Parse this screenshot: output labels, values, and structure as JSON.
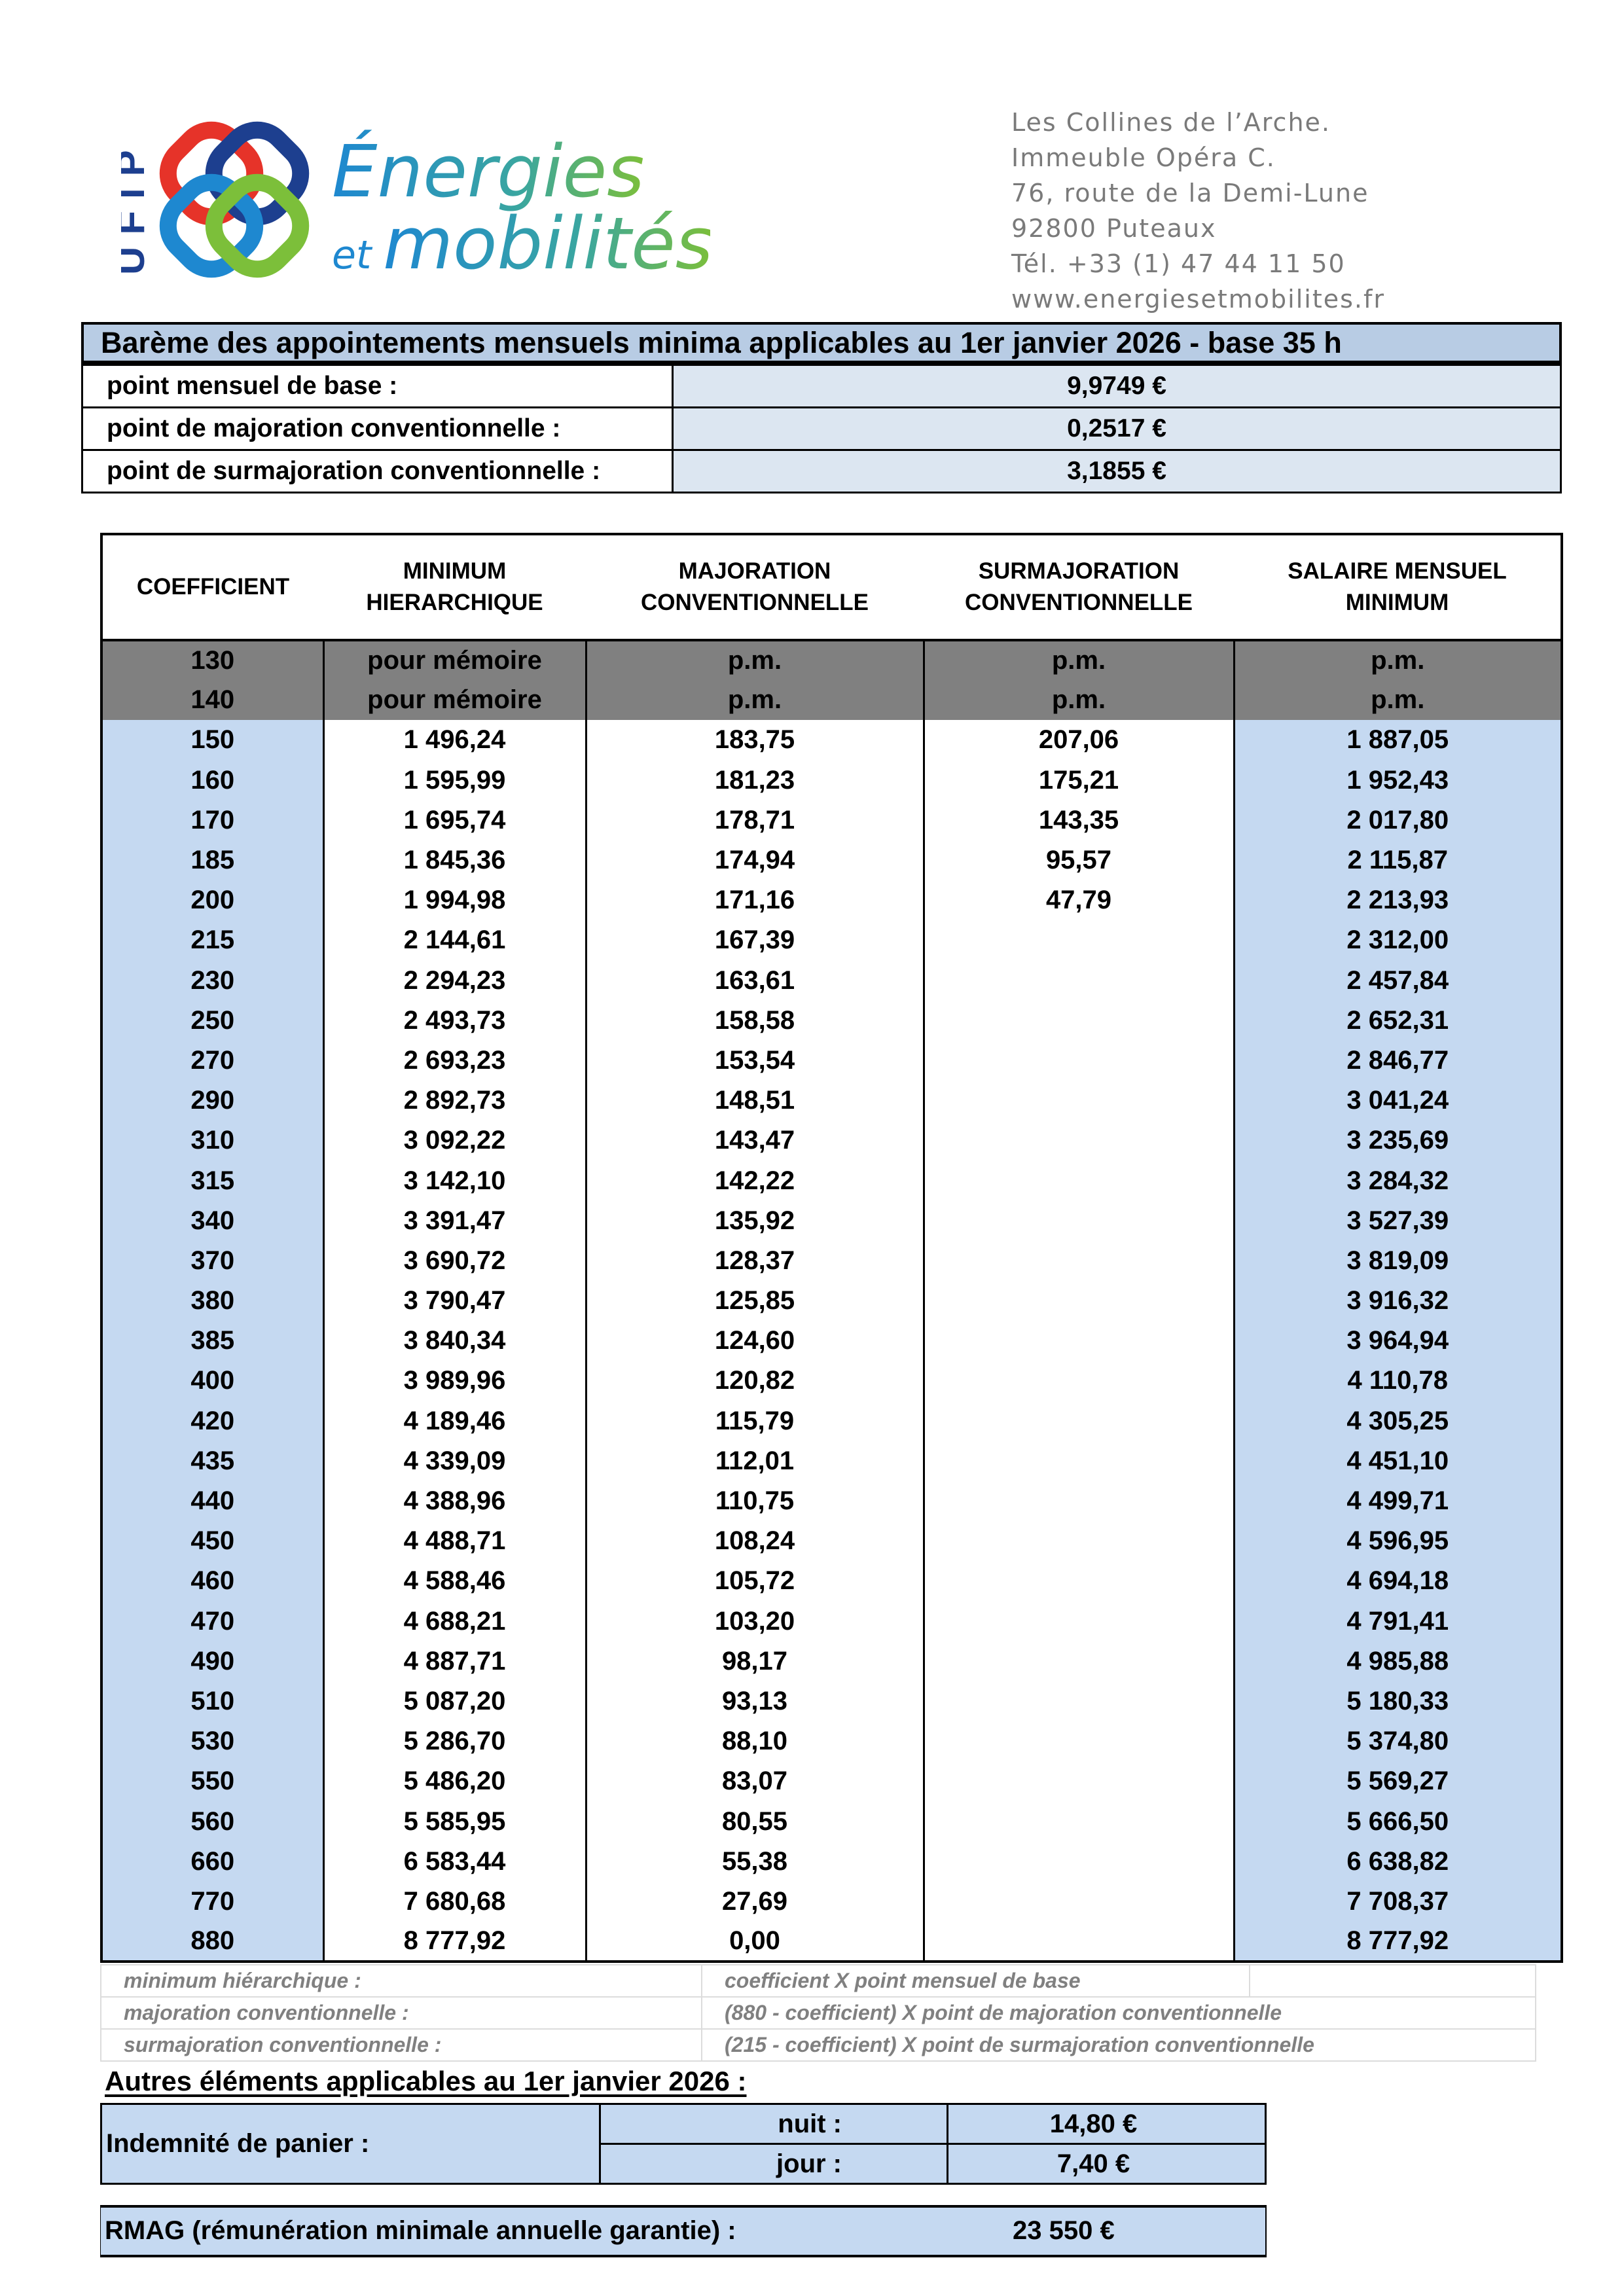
{
  "logo": {
    "org": "UFIP",
    "line1": "Énergies",
    "line2_a": "et",
    "line2_b": "mobilités",
    "colors": [
      "#e63329",
      "#1d3f8f",
      "#1e88d0",
      "#7cbf3a"
    ]
  },
  "address": [
    "Les Collines de l’Arche.",
    "Immeuble Opéra C.",
    "76, route de la Demi-Lune",
    "92800 Puteaux",
    "Tél. +33 (1) 47 44 11 50",
    "www.energiesetmobilites.fr"
  ],
  "title": "Barème des appointements mensuels minima applicables au 1er janvier 2026 - base 35 h",
  "points": [
    {
      "label": "point mensuel de base :",
      "value": "9,9749 €"
    },
    {
      "label": "point de majoration conventionnelle :",
      "value": "0,2517 €"
    },
    {
      "label": "point de surmajoration conventionnelle :",
      "value": "3,1855 €"
    }
  ],
  "table": {
    "headers": [
      [
        "COEFFICIENT"
      ],
      [
        "MINIMUM",
        "HIERARCHIQUE"
      ],
      [
        "MAJORATION",
        "CONVENTIONNELLE"
      ],
      [
        "SURMAJORATION",
        "CONVENTIONNELLE"
      ],
      [
        "SALAIRE MENSUEL",
        "MINIMUM"
      ]
    ],
    "rows": [
      [
        "130",
        "pour mémoire",
        "p.m.",
        "p.m.",
        "p.m."
      ],
      [
        "140",
        "pour mémoire",
        "p.m.",
        "p.m.",
        "p.m."
      ],
      [
        "150",
        "1 496,24",
        "183,75",
        "207,06",
        "1 887,05"
      ],
      [
        "160",
        "1 595,99",
        "181,23",
        "175,21",
        "1 952,43"
      ],
      [
        "170",
        "1 695,74",
        "178,71",
        "143,35",
        "2 017,80"
      ],
      [
        "185",
        "1 845,36",
        "174,94",
        "95,57",
        "2 115,87"
      ],
      [
        "200",
        "1 994,98",
        "171,16",
        "47,79",
        "2 213,93"
      ],
      [
        "215",
        "2 144,61",
        "167,39",
        "",
        "2 312,00"
      ],
      [
        "230",
        "2 294,23",
        "163,61",
        "",
        "2 457,84"
      ],
      [
        "250",
        "2 493,73",
        "158,58",
        "",
        "2 652,31"
      ],
      [
        "270",
        "2 693,23",
        "153,54",
        "",
        "2 846,77"
      ],
      [
        "290",
        "2 892,73",
        "148,51",
        "",
        "3 041,24"
      ],
      [
        "310",
        "3 092,22",
        "143,47",
        "",
        "3 235,69"
      ],
      [
        "315",
        "3 142,10",
        "142,22",
        "",
        "3 284,32"
      ],
      [
        "340",
        "3 391,47",
        "135,92",
        "",
        "3 527,39"
      ],
      [
        "370",
        "3 690,72",
        "128,37",
        "",
        "3 819,09"
      ],
      [
        "380",
        "3 790,47",
        "125,85",
        "",
        "3 916,32"
      ],
      [
        "385",
        "3 840,34",
        "124,60",
        "",
        "3 964,94"
      ],
      [
        "400",
        "3 989,96",
        "120,82",
        "",
        "4 110,78"
      ],
      [
        "420",
        "4 189,46",
        "115,79",
        "",
        "4 305,25"
      ],
      [
        "435",
        "4 339,09",
        "112,01",
        "",
        "4 451,10"
      ],
      [
        "440",
        "4 388,96",
        "110,75",
        "",
        "4 499,71"
      ],
      [
        "450",
        "4 488,71",
        "108,24",
        "",
        "4 596,95"
      ],
      [
        "460",
        "4 588,46",
        "105,72",
        "",
        "4 694,18"
      ],
      [
        "470",
        "4 688,21",
        "103,20",
        "",
        "4 791,41"
      ],
      [
        "490",
        "4 887,71",
        "98,17",
        "",
        "4 985,88"
      ],
      [
        "510",
        "5 087,20",
        "93,13",
        "",
        "5 180,33"
      ],
      [
        "530",
        "5 286,70",
        "88,10",
        "",
        "5 374,80"
      ],
      [
        "550",
        "5 486,20",
        "83,07",
        "",
        "5 569,27"
      ],
      [
        "560",
        "5 585,95",
        "80,55",
        "",
        "5 666,50"
      ],
      [
        "660",
        "6 583,44",
        "55,38",
        "",
        "6 638,82"
      ],
      [
        "770",
        "7 680,68",
        "27,69",
        "",
        "7 708,37"
      ],
      [
        "880",
        "8 777,92",
        "0,00",
        "",
        "8 777,92"
      ]
    ]
  },
  "formulas": [
    {
      "label": "minimum hiérarchique :",
      "formula": "coefficient X point mensuel de base"
    },
    {
      "label": "majoration conventionnelle :",
      "formula": "(880 - coefficient) X point de majoration conventionnelle"
    },
    {
      "label": "surmajoration conventionnelle :",
      "formula": "(215 - coefficient) X point de surmajoration conventionnelle"
    }
  ],
  "autres": {
    "heading": "Autres éléments applicables au 1er janvier 2026 :",
    "panier": {
      "label": "Indemnité de panier :",
      "nuit_label": "nuit :",
      "nuit_value": "14,80 €",
      "jour_label": "jour :",
      "jour_value": "7,40 €"
    },
    "rmag": {
      "label": "RMAG (rémunération minimale annuelle garantie) :",
      "value": "23 550 €"
    }
  }
}
